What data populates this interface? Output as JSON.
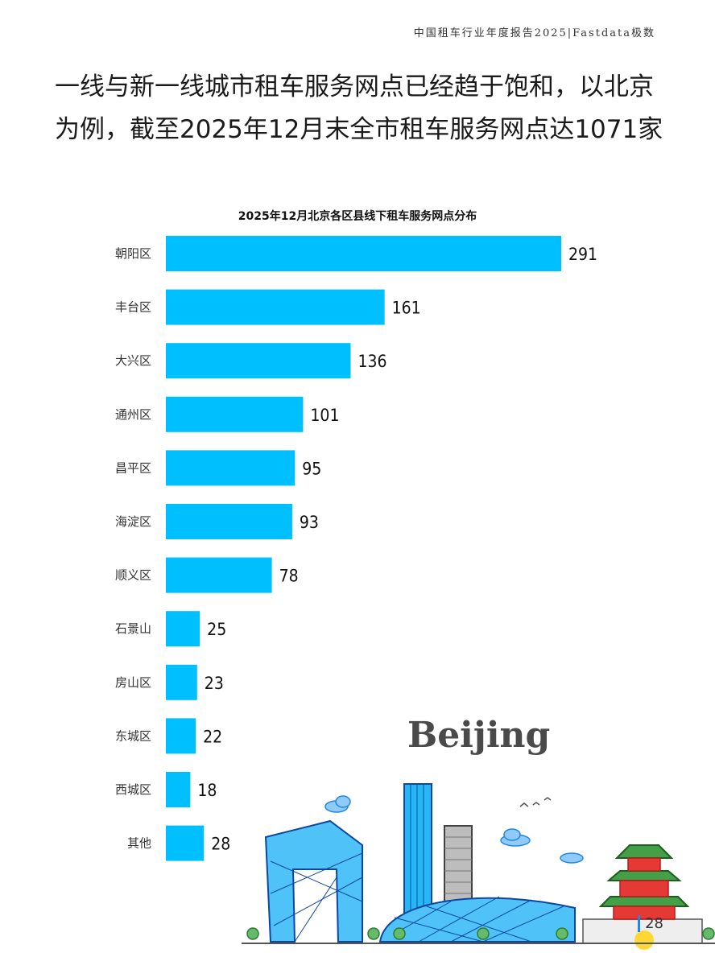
{
  "header": {
    "report_title": "中国租车行业年度报告2025|Fastdata极数"
  },
  "headline": "一线与新一线城市租车服务网点已经趋于饱和，以北京为例，截至2025年12月末全市租车服务网点达1071家",
  "chart_data": {
    "type": "bar",
    "orientation": "horizontal",
    "title": "2025年12月北京各区县线下租车服务网点分布",
    "categories": [
      "朝阳区",
      "丰台区",
      "大兴区",
      "通州区",
      "昌平区",
      "海淀区",
      "顺义区",
      "石景山",
      "房山区",
      "东城区",
      "西城区",
      "其他"
    ],
    "values": [
      291,
      161,
      136,
      101,
      95,
      93,
      78,
      25,
      23,
      22,
      18,
      28
    ],
    "xlim": [
      0,
      300
    ],
    "bar_color": "#00bfff",
    "grid": false
  },
  "illustration": {
    "city_word": "Beijing"
  },
  "footer": {
    "page_number": "28"
  }
}
